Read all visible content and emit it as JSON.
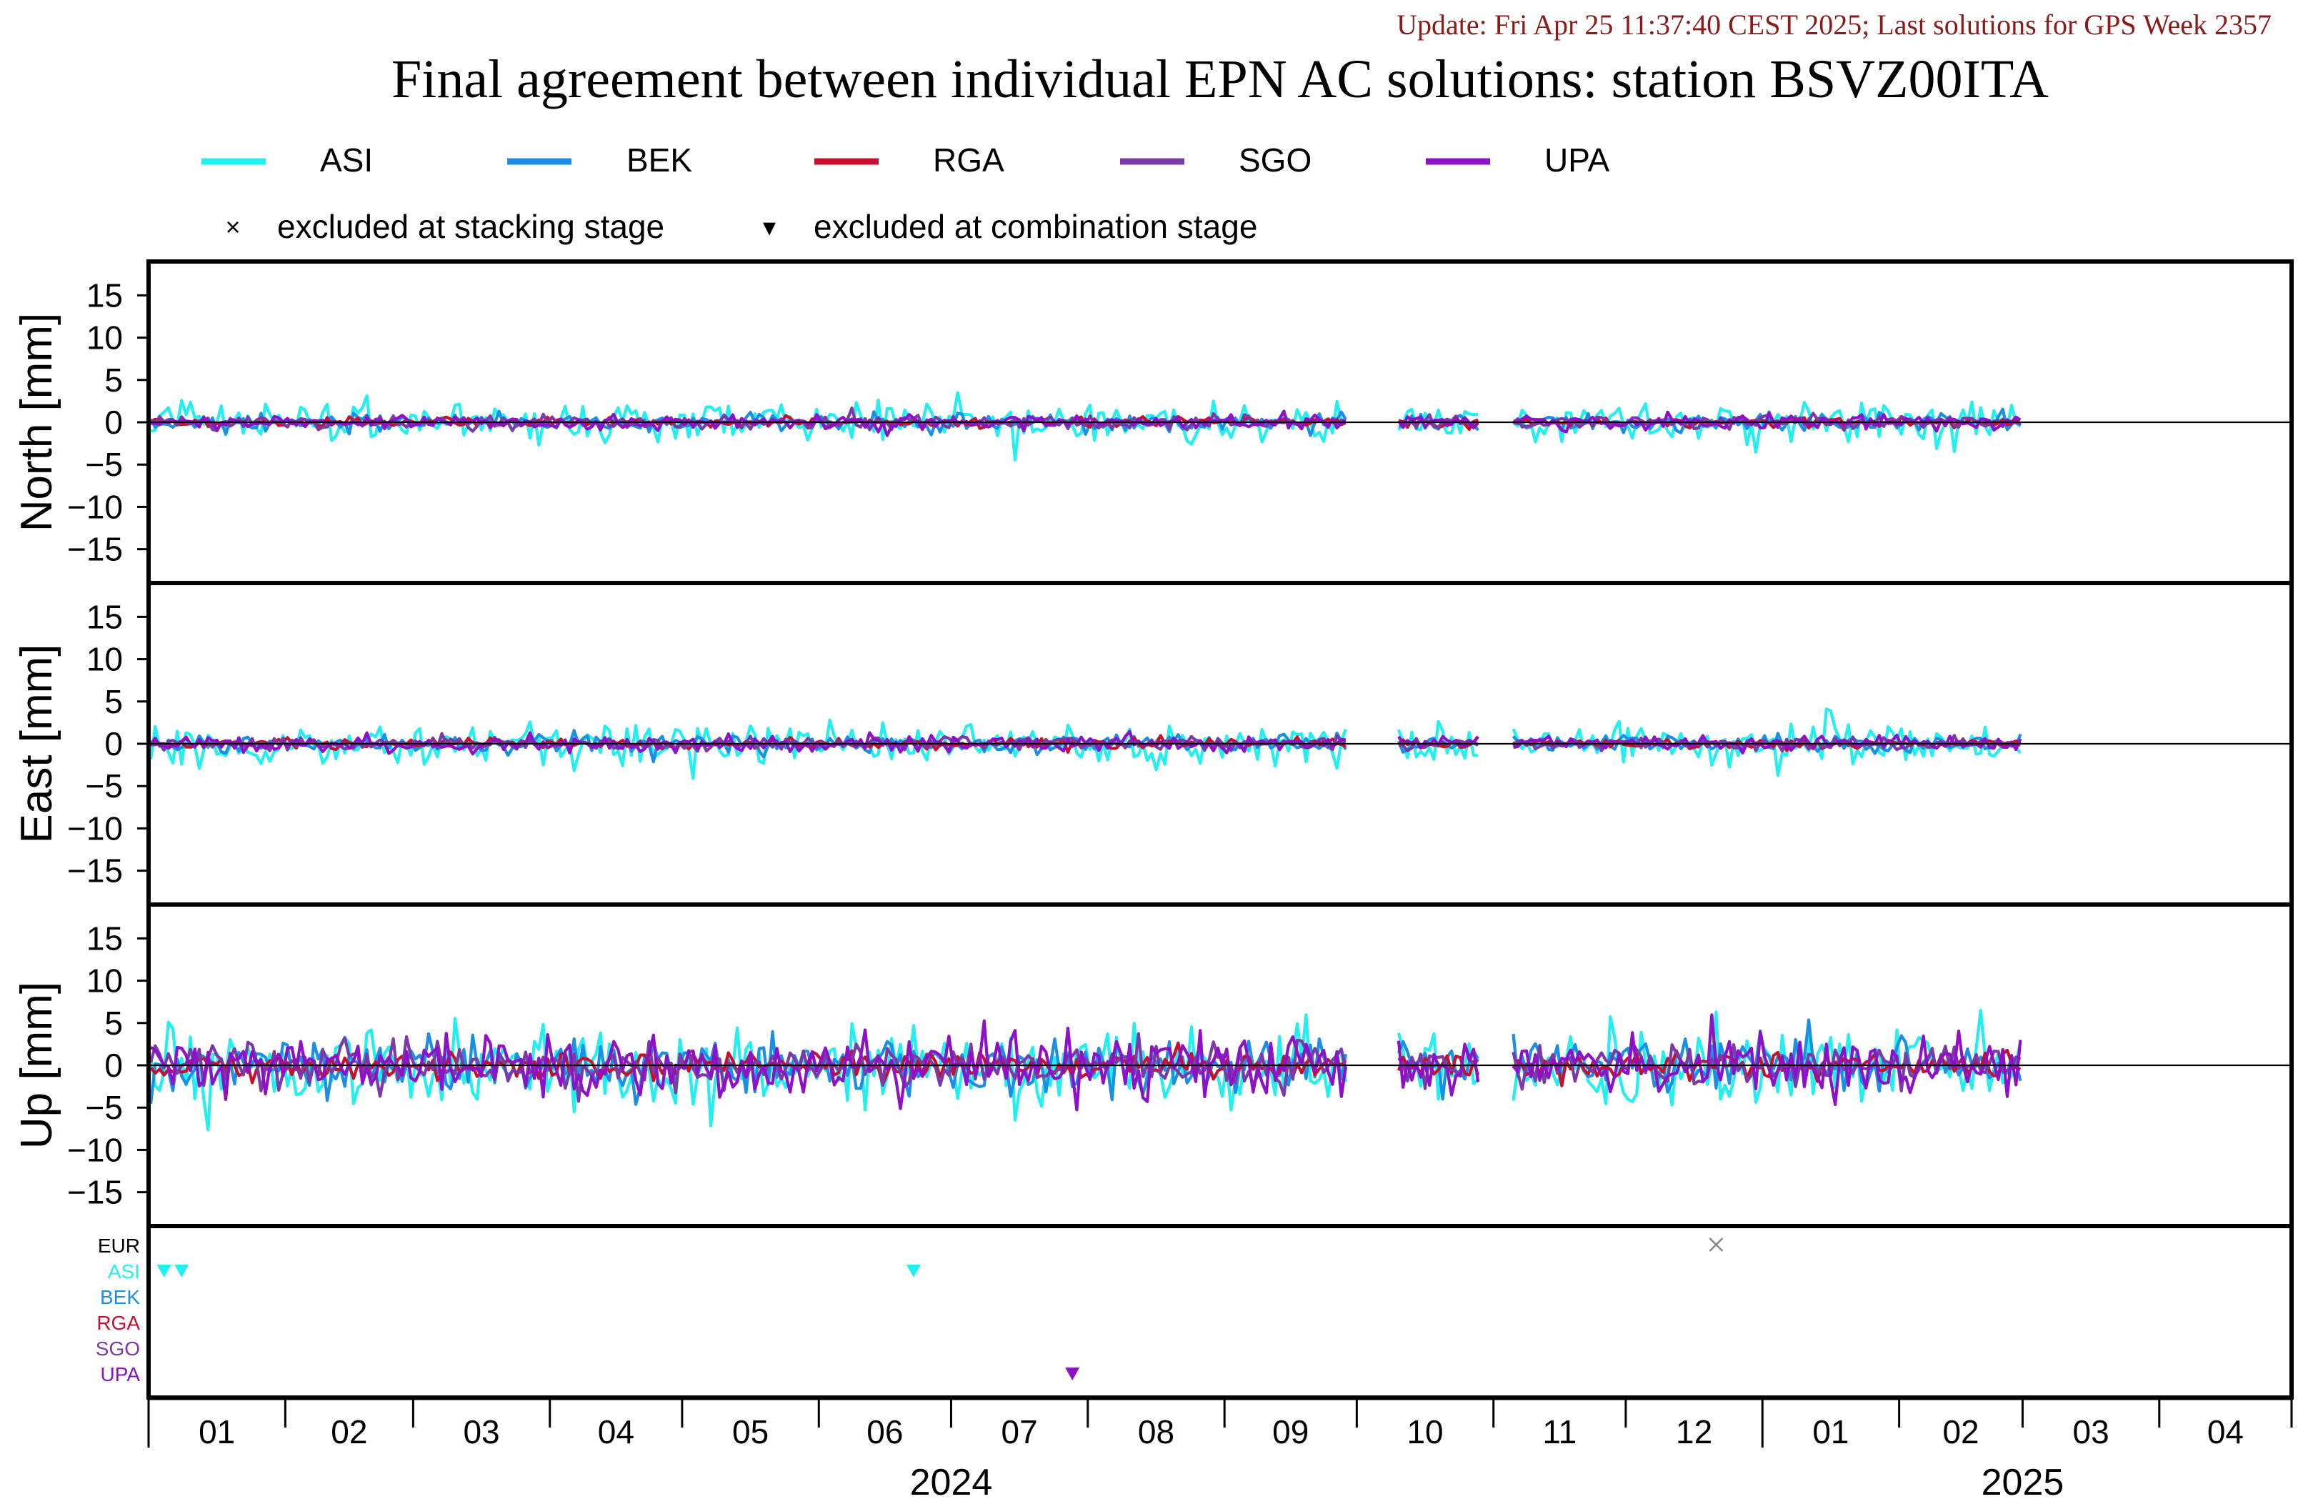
{
  "update_text": "Update: Fri Apr 25 11:37:40 CEST 2025; Last solutions for GPS Week 2357",
  "title": "Final agreement between individual EPN AC solutions: station BSVZ00ITA",
  "colors": {
    "update": "#8b1a1a",
    "ASI": "#22f0f0",
    "BEK": "#1b8fe6",
    "RGA": "#c8102e",
    "SGO": "#7b3aa8",
    "UPA": "#8e10c8",
    "EUR": "#000000",
    "axis": "#000000"
  },
  "legend": {
    "series": [
      "ASI",
      "BEK",
      "RGA",
      "SGO",
      "UPA"
    ],
    "markers": [
      {
        "symbol": "×",
        "label": "excluded at stacking stage"
      },
      {
        "symbol": "▾",
        "label": "excluded at combination stage"
      }
    ]
  },
  "chart_data": {
    "type": "line",
    "x_unit": "month",
    "x_range": [
      "2024-01-01",
      "2025-04-30"
    ],
    "month_ticks": [
      "01",
      "02",
      "03",
      "04",
      "05",
      "06",
      "07",
      "08",
      "09",
      "10",
      "11",
      "12",
      "01",
      "02",
      "03",
      "04"
    ],
    "years": [
      {
        "label": "2024",
        "center_month": "2024-07-01"
      },
      {
        "label": "2025",
        "center_month": "2025-03-01"
      }
    ],
    "panels": [
      {
        "name": "north",
        "ylabel": "North [mm]",
        "ylim": [
          -19,
          19
        ],
        "yticks": [
          15,
          10,
          5,
          0,
          -5,
          -10,
          -15
        ],
        "noise": {
          "ASI": 1.2,
          "BEK": 0.5,
          "RGA": 0.3,
          "SGO": 0.4,
          "UPA": 0.4
        }
      },
      {
        "name": "east",
        "ylabel": "East [mm]",
        "ylim": [
          -19,
          19
        ],
        "yticks": [
          15,
          10,
          5,
          0,
          -5,
          -10,
          -15
        ],
        "noise": {
          "ASI": 1.3,
          "BEK": 0.5,
          "RGA": 0.3,
          "SGO": 0.4,
          "UPA": 0.5
        }
      },
      {
        "name": "up",
        "ylabel": "Up [mm]",
        "ylim": [
          -19,
          19
        ],
        "yticks": [
          15,
          10,
          5,
          0,
          -5,
          -10,
          -15
        ],
        "noise": {
          "ASI": 2.6,
          "BEK": 1.6,
          "RGA": 0.8,
          "SGO": 1.3,
          "UPA": 1.8
        }
      }
    ],
    "data_segments": [
      [
        "2024-01-01",
        "2024-09-28"
      ],
      [
        "2024-10-10",
        "2024-10-28"
      ],
      [
        "2024-11-05",
        "2025-02-28"
      ]
    ],
    "exclusions": {
      "rows": [
        "EUR",
        "ASI",
        "BEK",
        "RGA",
        "SGO",
        "UPA"
      ],
      "events": [
        {
          "row": "ASI",
          "date": "2024-01-04",
          "symbol": "triangle"
        },
        {
          "row": "ASI",
          "date": "2024-01-08",
          "symbol": "triangle"
        },
        {
          "row": "ASI",
          "date": "2024-06-22",
          "symbol": "triangle"
        },
        {
          "row": "UPA",
          "date": "2024-07-28",
          "symbol": "triangle"
        },
        {
          "row": "EUR",
          "date": "2024-12-21",
          "symbol": "cross"
        }
      ]
    }
  }
}
